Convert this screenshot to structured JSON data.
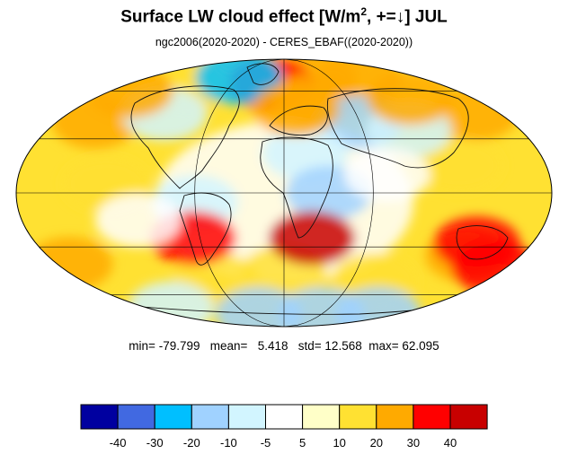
{
  "title": {
    "prefix": "Surface LW cloud effect [W/m",
    "sup": "2",
    "suffix": ", +=↓]  JUL"
  },
  "subtitle": "ngc2006(2020-2020) - CERES_EBAF((2020-2020))",
  "stats": {
    "min_label": "min=",
    "min": "-79.799",
    "mean_label": "mean=",
    "mean": "5.418",
    "std_label": "std=",
    "std": "12.568",
    "max_label": "max=",
    "max": "62.095"
  },
  "colorbar": {
    "colors": [
      "#0000a0",
      "#4169e1",
      "#00bfff",
      "#a0d2ff",
      "#d2f5ff",
      "#ffffff",
      "#ffffc8",
      "#ffe132",
      "#ffaa00",
      "#ff0000",
      "#c80000"
    ],
    "labels": [
      "-40",
      "-30",
      "-20",
      "-10",
      "-5",
      "5",
      "10",
      "20",
      "30",
      "40"
    ]
  },
  "map": {
    "projection": "Mollweide",
    "blobs": [
      {
        "lon": 0,
        "lat": -5,
        "value": 2
      },
      {
        "lon": -150,
        "lat": 40,
        "value": 20
      },
      {
        "lon": 160,
        "lat": 45,
        "value": 20
      },
      {
        "lon": -170,
        "lat": -40,
        "value": 20
      },
      {
        "lon": 140,
        "lat": -35,
        "value": 20
      },
      {
        "lon": 0,
        "lat": -45,
        "value": 15
      },
      {
        "lon": -60,
        "lat": -50,
        "value": 15
      },
      {
        "lon": 80,
        "lat": -50,
        "value": 15
      },
      {
        "lon": 120,
        "lat": 15,
        "value": 15
      },
      {
        "lon": -120,
        "lat": 5,
        "value": 15
      },
      {
        "lon": 40,
        "lat": 70,
        "value": 25
      },
      {
        "lon": -15,
        "lat": 65,
        "value": 30
      },
      {
        "lon": 30,
        "lat": 55,
        "value": 20
      },
      {
        "lon": 100,
        "lat": 70,
        "value": 20
      },
      {
        "lon": -110,
        "lat": 65,
        "value": 15
      },
      {
        "lon": 60,
        "lat": 40,
        "value": -20
      },
      {
        "lon": 95,
        "lat": 35,
        "value": -10
      },
      {
        "lon": 15,
        "lat": 22,
        "value": -8
      },
      {
        "lon": 30,
        "lat": 0,
        "value": -15
      },
      {
        "lon": -60,
        "lat": -5,
        "value": -10
      },
      {
        "lon": -100,
        "lat": 45,
        "value": -8
      },
      {
        "lon": -60,
        "lat": 70,
        "value": -25
      },
      {
        "lon": -40,
        "lat": -75,
        "value": -18
      },
      {
        "lon": 60,
        "lat": -75,
        "value": -15
      },
      {
        "lon": 150,
        "lat": -75,
        "value": -12
      },
      {
        "lon": -150,
        "lat": -70,
        "value": -10
      },
      {
        "lon": 20,
        "lat": -25,
        "value": 40
      },
      {
        "lon": -65,
        "lat": -25,
        "value": 35
      },
      {
        "lon": 140,
        "lat": -28,
        "value": 30
      },
      {
        "lon": 170,
        "lat": -42,
        "value": 30
      },
      {
        "lon": 10,
        "lat": 48,
        "value": 28
      },
      {
        "lon": 120,
        "lat": 55,
        "value": 20
      },
      {
        "lon": -160,
        "lat": 60,
        "value": 25
      },
      {
        "lon": -100,
        "lat": -15,
        "value": -5
      },
      {
        "lon": 70,
        "lat": 10,
        "value": -5
      }
    ]
  }
}
